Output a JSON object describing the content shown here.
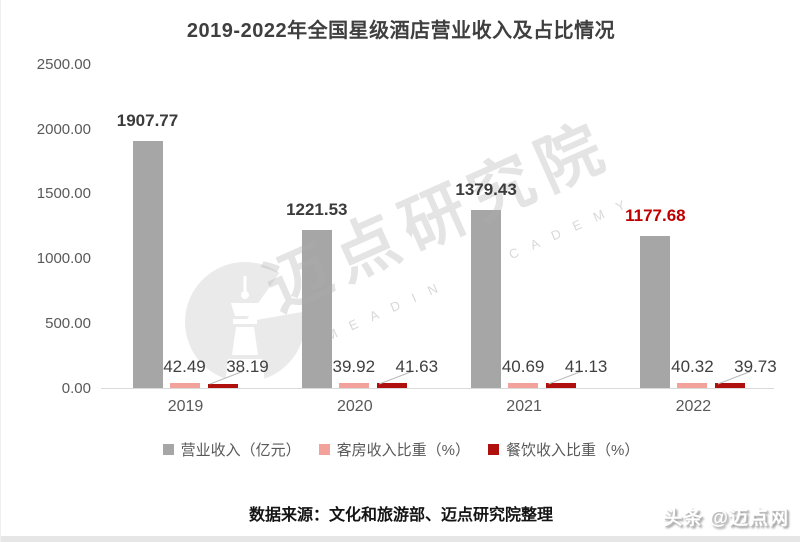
{
  "header": {
    "title": "2019-2022年全国星级酒店营业收入及占比情况"
  },
  "chart_data": {
    "type": "bar",
    "title": "2019-2022年全国星级酒店营业收入及占比情况",
    "categories": [
      "2019",
      "2020",
      "2021",
      "2022"
    ],
    "series": [
      {
        "name": "营业收入（亿元）",
        "color": "#a6a6a6",
        "values": [
          1907.77,
          1221.53,
          1379.43,
          1177.68
        ]
      },
      {
        "name": "客房收入比重（%）",
        "color": "#f2a29b",
        "values": [
          42.49,
          39.92,
          40.69,
          40.32
        ]
      },
      {
        "name": "餐饮收入比重（%）",
        "color": "#b0100d",
        "values": [
          38.19,
          41.63,
          41.13,
          39.73
        ]
      }
    ],
    "ylim": [
      0,
      2500
    ],
    "y_tick_labels": [
      "2500.00",
      "2000.00",
      "1500.00",
      "1000.00",
      "500.00",
      "0.00"
    ],
    "grid": false,
    "legend_position": "bottom",
    "highlight_label": {
      "category": "2022",
      "series": "营业收入（亿元）",
      "color": "#c00000"
    },
    "value_label_color": "#3b3b3b",
    "axis_color": "#d9d9d9",
    "tick_color": "#595959"
  },
  "watermark": {
    "cn": "迈点研究院",
    "en": "MEADIN ACADEMY",
    "logo": "tower-icon"
  },
  "footer": {
    "source_note": "数据来源：文化和旅游部、迈点研究院整理",
    "badge": "头条 @迈点网"
  }
}
